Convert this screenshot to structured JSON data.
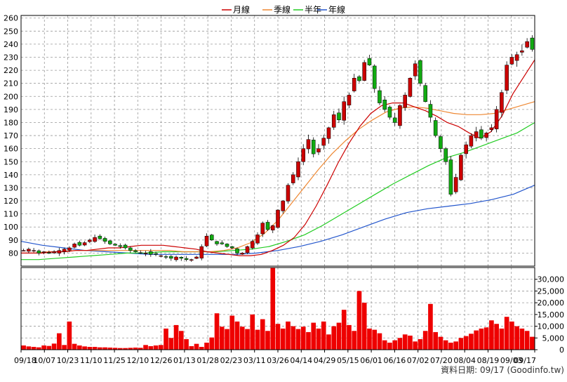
{
  "chart_data": {
    "type": "candlestick",
    "legend": [
      "月線",
      "季線",
      "半年",
      "年線"
    ],
    "colors": {
      "ma_month": "#cc0000",
      "ma_quarter": "#ee8833",
      "ma_half": "#22cc22",
      "ma_year": "#2255cc",
      "candle_up": "#cc0000",
      "candle_down": "#11aa11",
      "volume": "#ee0000",
      "grid": "#999999",
      "frame": "#000000"
    },
    "price_axis": {
      "range": [
        70,
        262
      ],
      "ticks": [
        80,
        90,
        100,
        110,
        120,
        130,
        140,
        150,
        160,
        170,
        180,
        190,
        200,
        210,
        220,
        230,
        240,
        250,
        260
      ]
    },
    "volume_axis": {
      "range": [
        0,
        35000
      ],
      "ticks": [
        0,
        5000,
        10000,
        15000,
        20000,
        25000,
        30000
      ],
      "tick_labels": [
        "0",
        "5,000",
        "10,000",
        "15,000",
        "20,000",
        "25,000",
        "30,000"
      ]
    },
    "date_labels": [
      "09/18",
      "10/07",
      "10/23",
      "11/10",
      "11/25",
      "12/10",
      "12/26",
      "01/13",
      "01/28",
      "02/23",
      "03/11",
      "03/26",
      "04/14",
      "04/29",
      "05/15",
      "06/01",
      "06/16",
      "07/02",
      "07/20",
      "08/04",
      "08/19",
      "09/03",
      "09/17"
    ],
    "grid": true,
    "legend_position": "top-center",
    "footer": "資料日期: 09/17  (Goodinfo.tw)",
    "close": [
      82,
      83,
      82,
      80,
      81,
      80,
      81,
      82,
      83,
      84,
      87,
      86,
      88,
      90,
      92,
      91,
      89,
      87,
      86,
      85,
      84,
      82,
      81,
      80,
      80,
      79,
      79,
      78,
      77,
      76,
      77,
      76,
      75,
      75,
      77,
      85,
      93,
      90,
      87,
      87,
      85,
      84,
      80,
      80,
      85,
      89,
      94,
      103,
      98,
      101,
      113,
      120,
      132,
      140,
      150,
      160,
      167,
      156,
      160,
      168,
      176,
      186,
      182,
      196,
      201,
      214,
      212,
      226,
      224,
      206,
      195,
      190,
      184,
      180,
      193,
      201,
      214,
      225,
      210,
      196,
      184,
      170,
      160,
      150,
      125,
      138,
      155,
      163,
      170,
      173,
      168,
      172,
      176,
      190,
      203,
      224,
      230,
      232,
      235,
      242,
      236
    ],
    "volume": [
      1800,
      1400,
      1200,
      1000,
      1800,
      1600,
      2600,
      7000,
      2000,
      12000,
      2500,
      1800,
      1400,
      1200,
      1200,
      1000,
      1000,
      900,
      800,
      700,
      700,
      800,
      900,
      800,
      2000,
      1500,
      1800,
      2000,
      9000,
      5000,
      10500,
      8000,
      4500,
      1500,
      2500,
      1200,
      3000,
      5200,
      15500,
      9800,
      8800,
      14500,
      12000,
      9800,
      8800,
      15000,
      8500,
      13000,
      8000,
      34800,
      11000,
      9000,
      12000,
      10000,
      8800,
      9800,
      7500,
      11500,
      9000,
      12000,
      6500,
      10000,
      11500,
      17000,
      10500,
      8000,
      25000,
      20000,
      9000,
      8500,
      7000,
      4000,
      3000,
      4000,
      5000,
      6500,
      6000,
      3500,
      4500,
      8000,
      19500,
      7500,
      5500,
      4000,
      3000,
      3500,
      5000,
      5800,
      6800,
      8200,
      9000,
      9500,
      12500,
      11000,
      9000,
      14000,
      12000,
      10000,
      9000,
      8000,
      5500
    ],
    "ma_month": [
      80,
      80,
      80,
      81,
      81,
      82,
      82,
      83,
      84,
      84,
      85,
      86,
      86,
      86,
      85,
      84,
      83,
      81,
      80,
      79,
      78,
      78,
      79,
      82,
      86,
      92,
      102,
      116,
      132,
      149,
      164,
      177,
      187,
      193,
      195,
      195,
      192,
      189,
      185,
      180,
      177,
      172,
      168,
      173,
      185,
      202,
      215,
      228
    ],
    "ma_quarter": [
      80,
      80,
      81,
      81,
      82,
      82,
      82,
      82,
      82,
      82,
      82,
      82,
      81,
      81,
      81,
      82,
      84,
      88,
      95,
      105,
      118,
      131,
      144,
      156,
      166,
      175,
      182,
      188,
      191,
      192,
      191,
      189,
      187,
      186,
      186,
      187,
      190,
      193,
      196
    ],
    "ma_half": [
      75,
      75,
      76,
      77,
      78,
      79,
      80,
      80,
      81,
      81,
      81,
      81,
      82,
      83,
      85,
      89,
      94,
      101,
      109,
      117,
      125,
      133,
      140,
      147,
      153,
      157,
      162,
      167,
      172,
      180
    ],
    "ma_year": [
      89,
      86,
      84,
      82,
      81,
      80,
      79,
      79,
      79,
      79,
      79,
      80,
      82,
      85,
      89,
      94,
      100,
      106,
      111,
      114,
      116,
      118,
      121,
      125,
      132
    ]
  }
}
